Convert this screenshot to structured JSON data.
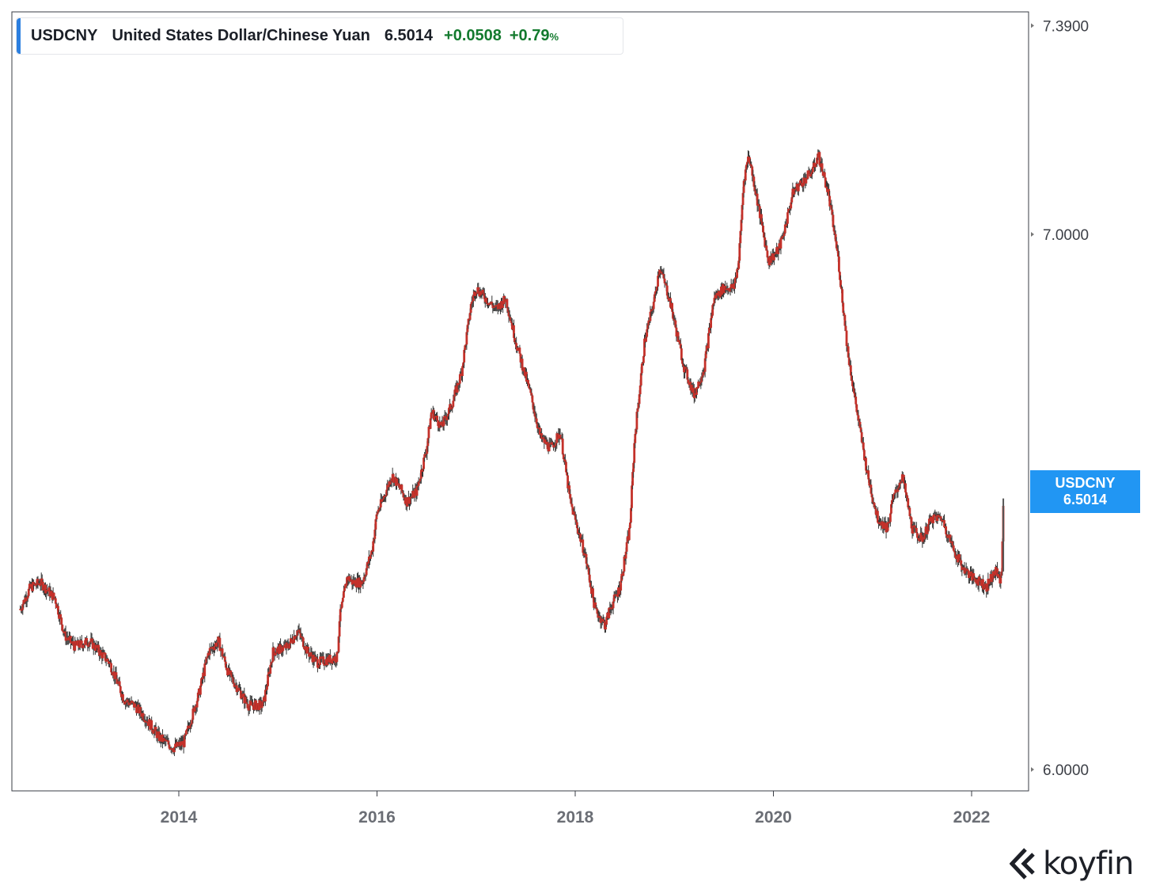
{
  "legend": {
    "symbol": "USDCNY",
    "name": "United States Dollar/Chinese Yuan",
    "price": "6.5014",
    "change": "+0.0508",
    "change_pct": "+0.79",
    "pct_sign": "%"
  },
  "price_tag": {
    "symbol": "USDCNY",
    "value": "6.5014"
  },
  "brand": {
    "name": "koyfin",
    "icon": "koyfin-logo-icon"
  },
  "colors": {
    "candles": "#c4312a",
    "wicks": "#333333",
    "accent": "#2196f3",
    "positive": "#137a2e"
  },
  "chart_data": {
    "type": "line",
    "title": "",
    "xlabel": "",
    "ylabel": "",
    "x_ticks": [
      "2014",
      "2016",
      "2018",
      "2020",
      "2022"
    ],
    "y_ticks": [
      "7.3900",
      "7.0000",
      "6.0000"
    ],
    "x_range": [
      "2012.4",
      "2022.6"
    ],
    "y_range": [
      5.96,
      7.45
    ],
    "grid": false,
    "series": [
      {
        "style": "candlestick",
        "x": [
          "2012.4",
          "2012.5",
          "2012.6",
          "2012.75",
          "2012.85",
          "2012.95",
          "2013.1",
          "2013.3",
          "2013.45",
          "2013.55",
          "2013.65",
          "2013.8",
          "2013.95",
          "2014.05",
          "2014.2",
          "2014.3",
          "2014.4",
          "2014.5",
          "2014.6",
          "2014.7",
          "2014.85",
          "2014.95",
          "2015.1",
          "2015.2",
          "2015.3",
          "2015.4",
          "2015.6",
          "2015.62",
          "2015.7",
          "2015.75",
          "2015.85",
          "2015.95",
          "2016.0",
          "2016.05",
          "2016.15",
          "2016.25",
          "2016.3",
          "2016.4",
          "2016.5",
          "2016.55",
          "2016.65",
          "2016.75",
          "2016.85",
          "2016.95",
          "2017.0",
          "2017.1",
          "2017.2",
          "2017.3",
          "2017.4",
          "2017.55",
          "2017.65",
          "2017.75",
          "2017.85",
          "2017.95",
          "2018.1",
          "2018.2",
          "2018.3",
          "2018.35",
          "2018.45",
          "2018.55",
          "2018.6",
          "2018.7",
          "2018.8",
          "2018.85",
          "2018.95",
          "2019.1",
          "2019.2",
          "2019.3",
          "2019.4",
          "2019.5",
          "2019.6",
          "2019.65",
          "2019.7",
          "2019.75",
          "2019.85",
          "2019.95",
          "2020.05",
          "2020.1",
          "2020.2",
          "2020.3",
          "2020.4",
          "2020.45",
          "2020.55",
          "2020.65",
          "2020.75",
          "2020.85",
          "2020.95",
          "2021.05",
          "2021.15",
          "2021.2",
          "2021.3",
          "2021.4",
          "2021.5",
          "2021.6",
          "2021.7",
          "2021.8",
          "2021.9",
          "2022.0",
          "2022.1",
          "2022.15",
          "2022.2",
          "2022.25",
          "2022.3",
          "2022.32"
        ],
        "values": [
          6.3,
          6.34,
          6.35,
          6.32,
          6.25,
          6.23,
          6.24,
          6.2,
          6.13,
          6.12,
          6.1,
          6.06,
          6.04,
          6.05,
          6.14,
          6.22,
          6.24,
          6.18,
          6.15,
          6.12,
          6.12,
          6.22,
          6.23,
          6.26,
          6.22,
          6.2,
          6.21,
          6.28,
          6.36,
          6.35,
          6.35,
          6.41,
          6.48,
          6.5,
          6.55,
          6.52,
          6.5,
          6.52,
          6.6,
          6.67,
          6.64,
          6.68,
          6.74,
          6.87,
          6.9,
          6.88,
          6.86,
          6.88,
          6.8,
          6.7,
          6.62,
          6.6,
          6.63,
          6.5,
          6.4,
          6.3,
          6.27,
          6.3,
          6.34,
          6.45,
          6.62,
          6.8,
          6.88,
          6.94,
          6.88,
          6.75,
          6.7,
          6.75,
          6.88,
          6.9,
          6.9,
          6.95,
          7.1,
          7.15,
          7.05,
          6.95,
          6.97,
          7.0,
          7.08,
          7.1,
          7.12,
          7.15,
          7.08,
          6.96,
          6.78,
          6.66,
          6.55,
          6.47,
          6.45,
          6.5,
          6.55,
          6.45,
          6.43,
          6.47,
          6.47,
          6.42,
          6.38,
          6.36,
          6.35,
          6.34,
          6.36,
          6.37,
          6.35,
          6.5
        ]
      }
    ],
    "last_value": 6.5014
  }
}
